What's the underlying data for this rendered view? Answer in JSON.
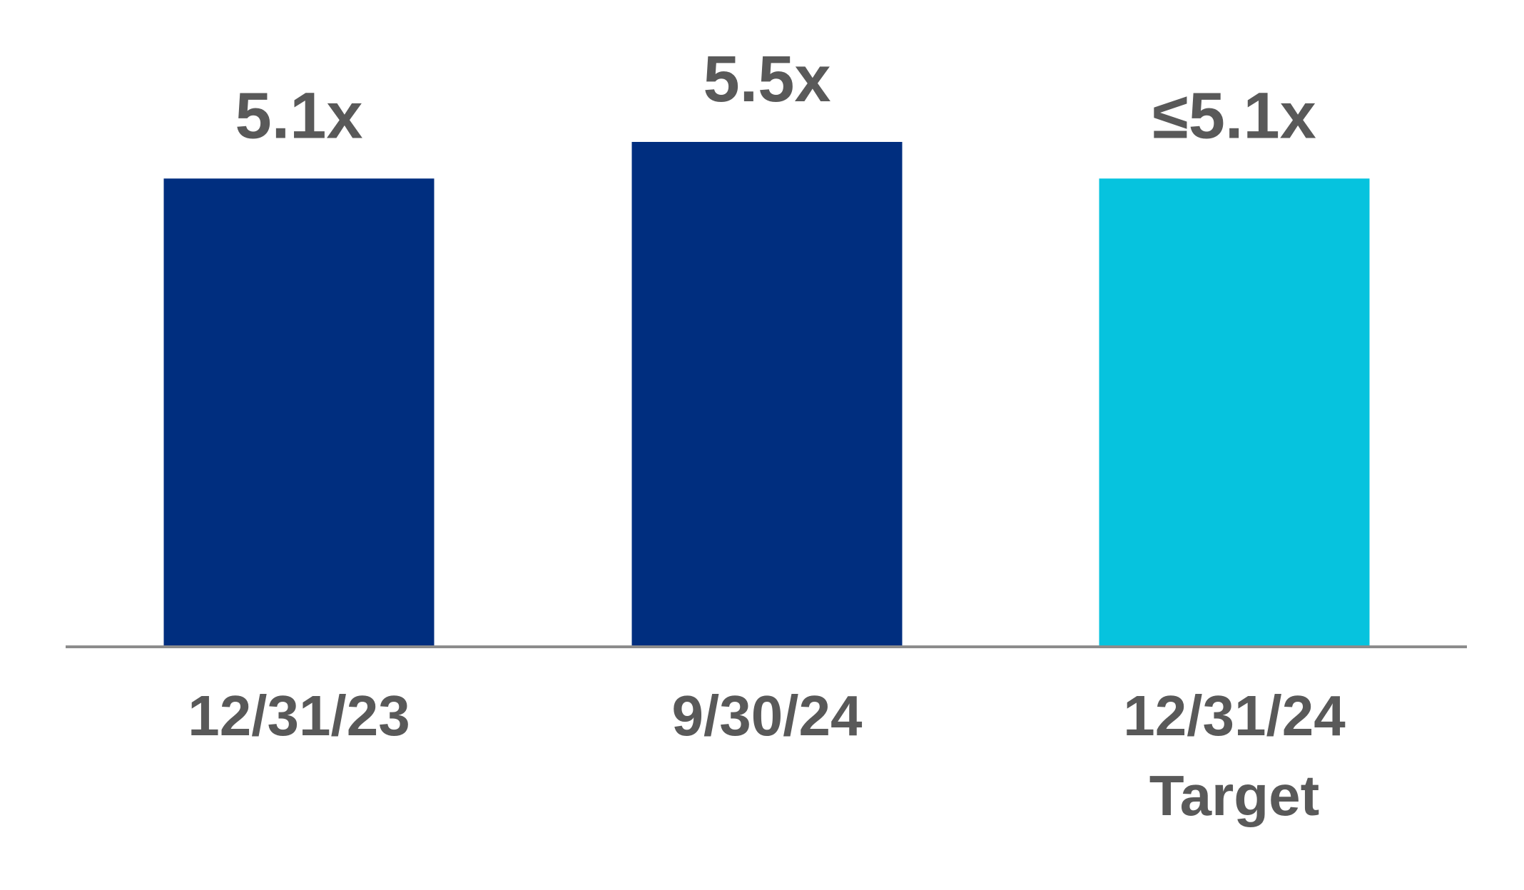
{
  "chart_data": {
    "type": "bar",
    "categories": [
      "12/31/23",
      "9/30/24",
      "12/31/24\nTarget"
    ],
    "values": [
      5.1,
      5.5,
      5.1
    ],
    "value_labels": [
      "5.1x",
      "5.5x",
      "≤5.1x"
    ],
    "colors": [
      "#002e7f",
      "#002e7f",
      "#06c3de"
    ]
  }
}
